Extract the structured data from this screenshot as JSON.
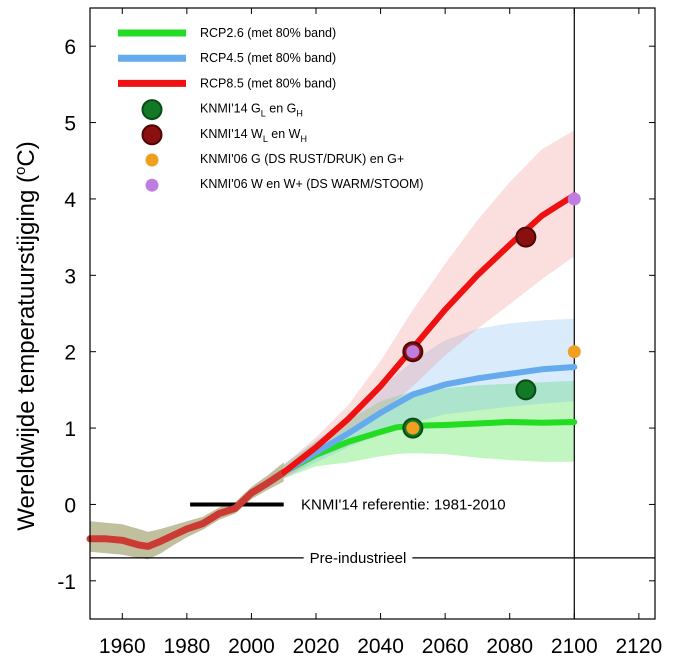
{
  "chart_data": {
    "type": "line",
    "ylabel": {
      "pre": "Wereldwijde temperatuurstijging (",
      "sup": "o",
      "post": "C)"
    },
    "xlim": [
      1950,
      2125
    ],
    "ylim": [
      -1.5,
      6.5
    ],
    "xticks": [
      "1960",
      "1980",
      "2000",
      "2020",
      "2040",
      "2060",
      "2080",
      "2100",
      "2120"
    ],
    "xtick_values": [
      1960,
      1980,
      2000,
      2020,
      2040,
      2060,
      2080,
      2100,
      2120
    ],
    "yticks": [
      "-1",
      "0",
      "1",
      "2",
      "3",
      "4",
      "5",
      "6"
    ],
    "ytick_values": [
      -1,
      0,
      1,
      2,
      3,
      4,
      5,
      6
    ],
    "historical": {
      "x": [
        1950,
        1955,
        1960,
        1965,
        1968,
        1972,
        1976,
        1980,
        1985,
        1990,
        1995,
        2000,
        2005,
        2010
      ],
      "y": [
        -0.45,
        -0.45,
        -0.47,
        -0.53,
        -0.55,
        -0.48,
        -0.4,
        -0.32,
        -0.25,
        -0.12,
        -0.05,
        0.15,
        0.28,
        0.42
      ],
      "band_low": [
        -0.62,
        -0.64,
        -0.66,
        -0.7,
        -0.72,
        -0.64,
        -0.53,
        -0.43,
        -0.33,
        -0.2,
        -0.12,
        0.07,
        0.19,
        0.3
      ],
      "band_high": [
        -0.22,
        -0.24,
        -0.26,
        -0.32,
        -0.36,
        -0.32,
        -0.27,
        -0.22,
        -0.16,
        -0.04,
        0.03,
        0.23,
        0.38,
        0.55
      ],
      "line_color": "#cc3a34",
      "band_color": "#8c8c50"
    },
    "series": [
      {
        "name": "RCP2.6 (met 80% band)",
        "color": "#22dd22",
        "band_color": "#22dd22",
        "x": [
          2010,
          2020,
          2030,
          2040,
          2045,
          2050,
          2060,
          2070,
          2080,
          2090,
          2100
        ],
        "y": [
          0.42,
          0.65,
          0.82,
          0.95,
          1.01,
          1.03,
          1.04,
          1.06,
          1.08,
          1.07,
          1.08
        ],
        "band_low": [
          0.34,
          0.5,
          0.55,
          0.63,
          0.66,
          0.67,
          0.66,
          0.61,
          0.58,
          0.56,
          0.56
        ],
        "band_high": [
          0.52,
          0.82,
          1.1,
          1.35,
          1.42,
          1.48,
          1.52,
          1.56,
          1.58,
          1.6,
          1.62
        ]
      },
      {
        "name": "RCP4.5 (met 80% band)",
        "color": "#66aaee",
        "band_color": "#7ab8f2",
        "x": [
          2010,
          2020,
          2030,
          2040,
          2050,
          2060,
          2070,
          2080,
          2090,
          2100
        ],
        "y": [
          0.42,
          0.68,
          0.93,
          1.2,
          1.44,
          1.57,
          1.65,
          1.71,
          1.77,
          1.8
        ],
        "band_low": [
          0.34,
          0.55,
          0.75,
          0.92,
          1.07,
          1.18,
          1.23,
          1.28,
          1.32,
          1.35
        ],
        "band_high": [
          0.52,
          0.84,
          1.14,
          1.52,
          1.88,
          2.15,
          2.3,
          2.37,
          2.41,
          2.43
        ]
      },
      {
        "name": "RCP8.5 (met 80% band)",
        "color": "#ee1111",
        "band_color": "#f28b8b",
        "x": [
          2010,
          2020,
          2030,
          2040,
          2050,
          2060,
          2070,
          2080,
          2090,
          2100
        ],
        "y": [
          0.42,
          0.75,
          1.12,
          1.55,
          2.05,
          2.55,
          3.0,
          3.4,
          3.78,
          4.05
        ],
        "band_low": [
          0.34,
          0.6,
          0.9,
          1.2,
          1.55,
          1.95,
          2.3,
          2.62,
          2.95,
          3.25
        ],
        "band_high": [
          0.52,
          0.88,
          1.3,
          1.88,
          2.55,
          3.15,
          3.72,
          4.22,
          4.65,
          4.9
        ]
      }
    ],
    "points": [
      {
        "name": "KNMI'14 G_L en G_H",
        "color": "#127a27",
        "x": [
          2050,
          2085
        ],
        "y": [
          1.0,
          1.5
        ]
      },
      {
        "name": "KNMI'14 W_L en W_H",
        "color": "#8a1010",
        "x": [
          2050,
          2085
        ],
        "y": [
          2.0,
          3.5
        ]
      },
      {
        "name": "KNMI'06 G (DS RUST/DRUK) en G+",
        "color": "#f0a020",
        "x": [
          2050,
          2100
        ],
        "y": [
          1.0,
          2.0
        ]
      },
      {
        "name": "KNMI'06 W en W+ (DS WARM/STOOM)",
        "color": "#c07de0",
        "x": [
          2050,
          2100
        ],
        "y": [
          2.0,
          4.0
        ]
      }
    ],
    "legend": {
      "placement": "top-left",
      "entries": [
        {
          "label": "RCP2.6 (met 80% band)"
        },
        {
          "label": "RCP4.5 (met 80% band)"
        },
        {
          "label": "RCP8.5 (met 80% band)"
        },
        {
          "label": "KNMI'14 G",
          "sub1": "L",
          "mid": " en G",
          "sub2": "H"
        },
        {
          "label": "KNMI'14 W",
          "sub1": "L",
          "mid": " en W",
          "sub2": "H"
        },
        {
          "label": "KNMI'06 G (DS RUST/DRUK) en G+"
        },
        {
          "label": "KNMI'06 W en W+ (DS WARM/STOOM)"
        }
      ]
    },
    "reference": {
      "label": "KNMI'14 referentie: 1981-2010",
      "x": [
        1981,
        2010
      ],
      "y": 0
    },
    "preindustrial": {
      "label": "Pre-industrieel",
      "y": -0.7
    },
    "vline_x": 2100,
    "grid": false
  }
}
